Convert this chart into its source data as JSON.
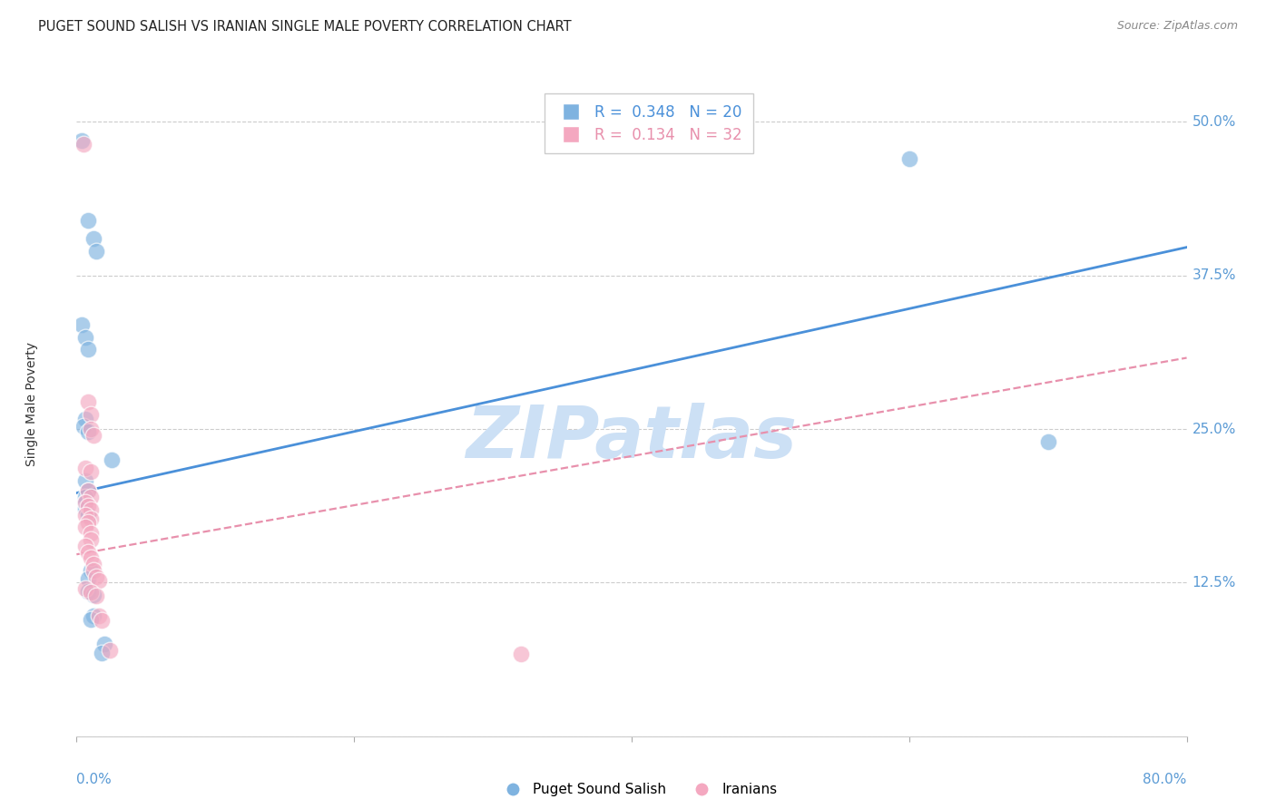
{
  "title": "PUGET SOUND SALISH VS IRANIAN SINGLE MALE POVERTY CORRELATION CHART",
  "source": "Source: ZipAtlas.com",
  "ylabel": "Single Male Poverty",
  "xlim": [
    0.0,
    0.8
  ],
  "ylim": [
    -0.02,
    0.56
  ],
  "plot_ylim": [
    0.0,
    0.54
  ],
  "watermark": "ZIPatlas",
  "blue_scatter": [
    [
      0.004,
      0.485
    ],
    [
      0.008,
      0.42
    ],
    [
      0.012,
      0.405
    ],
    [
      0.014,
      0.395
    ],
    [
      0.004,
      0.335
    ],
    [
      0.006,
      0.325
    ],
    [
      0.008,
      0.315
    ],
    [
      0.006,
      0.258
    ],
    [
      0.005,
      0.252
    ],
    [
      0.008,
      0.248
    ],
    [
      0.025,
      0.225
    ],
    [
      0.006,
      0.208
    ],
    [
      0.008,
      0.2
    ],
    [
      0.006,
      0.195
    ],
    [
      0.006,
      0.19
    ],
    [
      0.006,
      0.185
    ],
    [
      0.008,
      0.18
    ],
    [
      0.01,
      0.135
    ],
    [
      0.008,
      0.128
    ],
    [
      0.6,
      0.47
    ],
    [
      0.7,
      0.24
    ],
    [
      0.012,
      0.098
    ],
    [
      0.01,
      0.095
    ],
    [
      0.02,
      0.075
    ],
    [
      0.018,
      0.068
    ],
    [
      0.008,
      0.118
    ],
    [
      0.012,
      0.115
    ]
  ],
  "pink_scatter": [
    [
      0.005,
      0.482
    ],
    [
      0.008,
      0.272
    ],
    [
      0.01,
      0.262
    ],
    [
      0.01,
      0.25
    ],
    [
      0.012,
      0.245
    ],
    [
      0.006,
      0.218
    ],
    [
      0.01,
      0.215
    ],
    [
      0.008,
      0.2
    ],
    [
      0.01,
      0.195
    ],
    [
      0.006,
      0.19
    ],
    [
      0.008,
      0.187
    ],
    [
      0.01,
      0.184
    ],
    [
      0.006,
      0.18
    ],
    [
      0.01,
      0.177
    ],
    [
      0.008,
      0.174
    ],
    [
      0.006,
      0.17
    ],
    [
      0.01,
      0.165
    ],
    [
      0.01,
      0.16
    ],
    [
      0.006,
      0.155
    ],
    [
      0.008,
      0.15
    ],
    [
      0.01,
      0.145
    ],
    [
      0.012,
      0.14
    ],
    [
      0.012,
      0.135
    ],
    [
      0.014,
      0.13
    ],
    [
      0.016,
      0.127
    ],
    [
      0.006,
      0.12
    ],
    [
      0.01,
      0.117
    ],
    [
      0.014,
      0.114
    ],
    [
      0.016,
      0.098
    ],
    [
      0.018,
      0.094
    ],
    [
      0.024,
      0.07
    ],
    [
      0.32,
      0.067
    ]
  ],
  "blue_line_x": [
    0.0,
    0.8
  ],
  "blue_line_y": [
    0.198,
    0.398
  ],
  "pink_line_x": [
    0.0,
    0.8
  ],
  "pink_line_y": [
    0.148,
    0.308
  ],
  "blue_dot_color": "#7fb3e0",
  "pink_dot_color": "#f4a8c0",
  "blue_line_color": "#4a90d9",
  "pink_line_color": "#e890ac",
  "legend_blue_color": "#7fb3e0",
  "legend_pink_color": "#f4a8c0",
  "legend_text_blue": "#4a90d9",
  "legend_text_pink": "#e890ac",
  "axis_color": "#5b9bd5",
  "grid_color": "#cccccc",
  "watermark_color": "#cce0f5",
  "background_color": "#ffffff",
  "title_fontsize": 10.5,
  "source_fontsize": 9,
  "ylabel_fontsize": 10,
  "axis_tick_fontsize": 11,
  "legend_fontsize": 12,
  "watermark_fontsize": 58,
  "dot_size": 180,
  "dot_alpha": 0.65,
  "dot_edge_color": "#ffffff",
  "dot_edge_width": 1.0
}
